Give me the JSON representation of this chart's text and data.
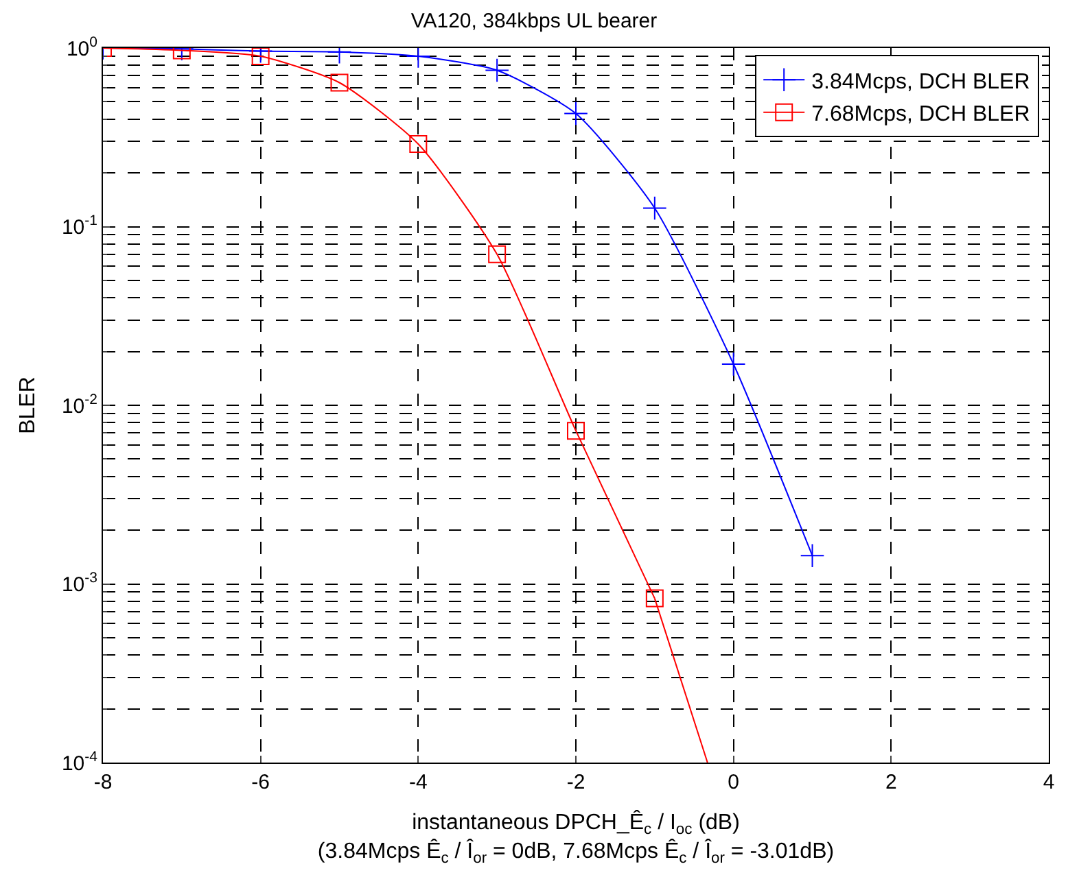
{
  "chart_data": {
    "type": "line",
    "title": "VA120, 384kbps UL bearer",
    "xlabel": "instantaneous DPCH_Ê$_{c}$ / I$_{oc}$ (dB)\n(3.84Mcps Ê$_{c}$ / Î$_{or}$ = 0dB, 7.68Mcps Ê$_{c}$ / Î$_{or}$ = -3.01dB)",
    "ylabel": "BLER",
    "x": [
      -8,
      -7,
      -6,
      -5,
      -4,
      -3,
      -2,
      -1,
      0,
      1
    ],
    "series": [
      {
        "name": "3.84Mcps, DCH BLER",
        "color": "#0000ff",
        "marker": "cross",
        "values": [
          1.0,
          0.99,
          0.96,
          0.95,
          0.9,
          0.75,
          0.43,
          0.127,
          0.017,
          0.00144
        ]
      },
      {
        "name": "7.68Mcps, DCH BLER",
        "color": "#ff0000",
        "marker": "square",
        "x": [
          -8,
          -7,
          -6,
          -5,
          -4,
          -3,
          -2,
          -1
        ],
        "values": [
          1.0,
          0.97,
          0.9,
          0.64,
          0.29,
          0.07,
          0.0072,
          0.00083
        ]
      },
      {
        "color": "#ff0000",
        "marker": "none",
        "x": [
          -1,
          -0.33
        ],
        "values": [
          0.00083,
          0.0001
        ]
      }
    ],
    "log": "y",
    "xlim": [
      -8,
      4
    ],
    "xticks": [
      -8,
      -6,
      -4,
      -2,
      0,
      2,
      4
    ],
    "ylim": [
      0.0001,
      1
    ],
    "yticks": [
      {
        "value": 0.0001,
        "label": "10$^{-4}$"
      },
      {
        "value": 0.001,
        "label": "10$^{-3}$"
      },
      {
        "value": 0.01,
        "label": "10$^{-2}$"
      },
      {
        "value": 0.1,
        "label": "10$^{-1}$"
      },
      {
        "value": 1,
        "label": "10$^{0}$"
      }
    ],
    "grid": true,
    "legend": "top right",
    "line_style": "solid"
  }
}
